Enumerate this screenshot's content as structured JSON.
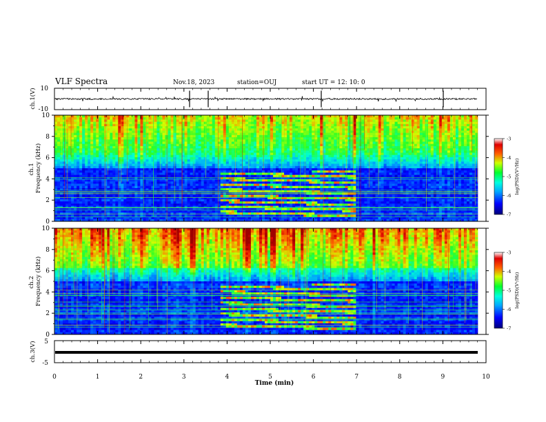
{
  "header": {
    "title": "VLF Spectra",
    "date": "Nov.18, 2023",
    "station": "station=OUJ",
    "start": "start  UT =   12: 10: 0"
  },
  "chart_data": [
    {
      "type": "line",
      "panel": "ch1-waveform",
      "ylabel": "ch.1(V)",
      "ylim": [
        -10,
        10
      ],
      "yticks": [
        "10",
        "-10"
      ],
      "series": [
        {
          "values": [
            0
          ]
        }
      ]
    },
    {
      "type": "heatmap",
      "panel": "ch1-spectrogram",
      "ylabel": "ch.1\nFrequency (kHz)",
      "ylim": [
        0,
        10
      ],
      "yticks": [
        "0",
        "2",
        "4",
        "6",
        "8",
        "10"
      ],
      "colorbar": {
        "label": "log(PSD)(V²/Hz)",
        "range": [
          -7,
          -3
        ],
        "ticks": [
          "-3",
          "-4",
          "-5",
          "-6",
          "-7"
        ]
      }
    },
    {
      "type": "heatmap",
      "panel": "ch2-spectrogram",
      "ylabel": "ch.2\nFrequency (kHz)",
      "ylim": [
        0,
        10
      ],
      "yticks": [
        "0",
        "2",
        "4",
        "6",
        "8",
        "10"
      ],
      "colorbar": {
        "label": "log(PSD)(V²/Hz)",
        "range": [
          -7,
          -3
        ],
        "ticks": [
          "-3",
          "-4",
          "-5",
          "-6",
          "-7"
        ]
      }
    },
    {
      "type": "line",
      "panel": "ch3-waveform",
      "ylabel": "ch.3(V)",
      "ylim": [
        -5,
        5
      ],
      "yticks": [
        "5",
        "-5"
      ],
      "series": [
        {
          "values": [
            -1
          ]
        }
      ]
    }
  ],
  "xaxis": {
    "label": "Time  (min)",
    "range": [
      0,
      10
    ],
    "ticks": [
      "0",
      "1",
      "2",
      "3",
      "4",
      "5",
      "6",
      "7",
      "8",
      "9",
      "10"
    ]
  }
}
